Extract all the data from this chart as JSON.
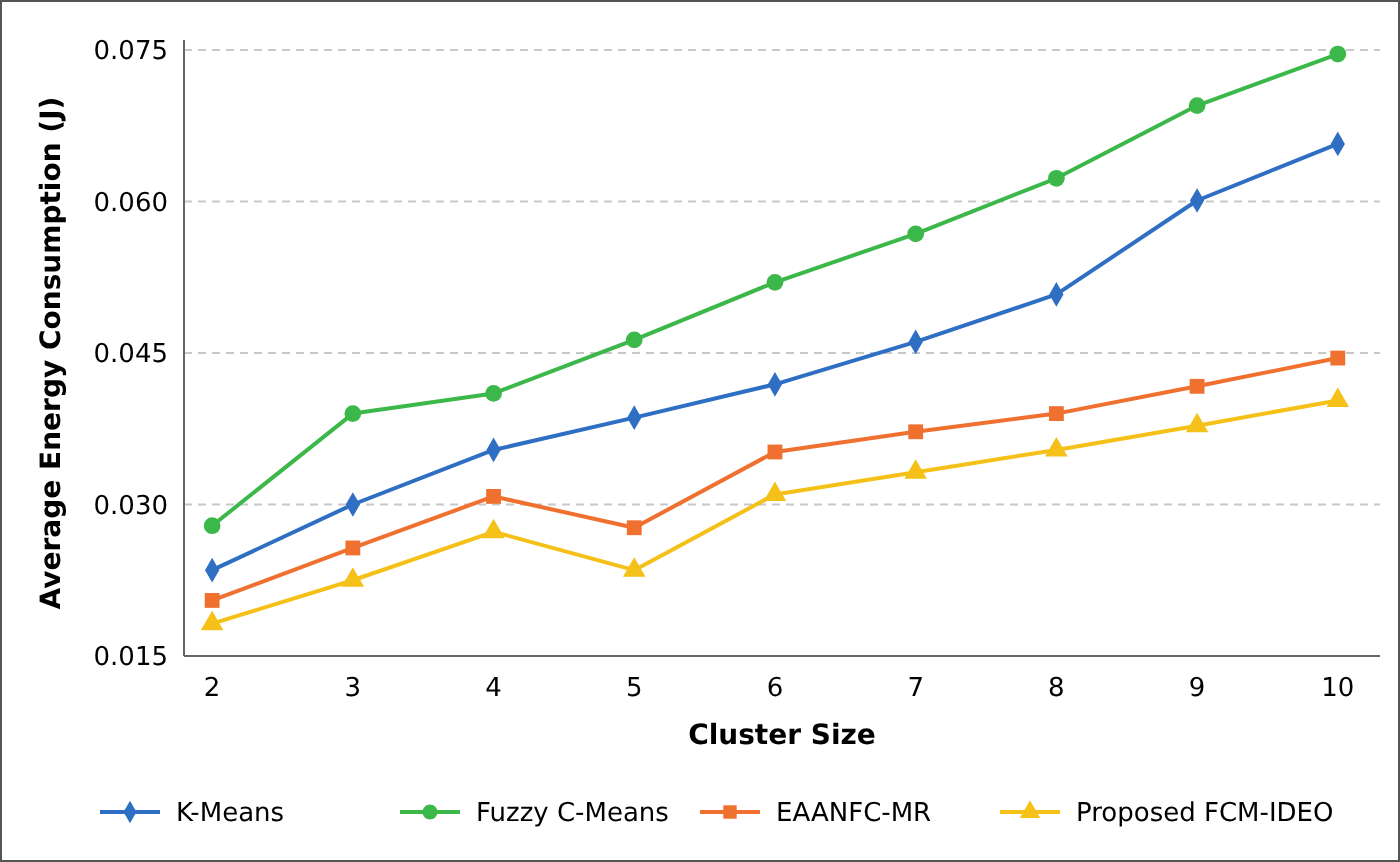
{
  "chart_data": {
    "type": "line",
    "xlabel": "Cluster Size",
    "ylabel": "Average Energy Consumption (J)",
    "x": [
      2,
      3,
      4,
      5,
      6,
      7,
      8,
      9,
      10
    ],
    "xlim": [
      1.8,
      10.3
    ],
    "xticks": [
      2,
      3,
      4,
      5,
      6,
      7,
      8,
      9,
      10
    ],
    "ylim": [
      0.015,
      0.075
    ],
    "yticks": [
      {
        "value": 0.015,
        "label": "0.015"
      },
      {
        "value": 0.03,
        "label": "0.030"
      },
      {
        "value": 0.045,
        "label": "0.045"
      },
      {
        "value": 0.06,
        "label": "0.060"
      },
      {
        "value": 0.075,
        "label": "0.075"
      }
    ],
    "grid": "y",
    "legend": "bottom",
    "series": [
      {
        "name": "K-Means",
        "color": "#2e6fc4",
        "marker": "diamond",
        "values": [
          0.0235,
          0.03,
          0.0354,
          0.0386,
          0.0419,
          0.0461,
          0.0508,
          0.0601,
          0.0657
        ]
      },
      {
        "name": "Fuzzy C-Means",
        "color": "#3cb84a",
        "marker": "circle",
        "values": [
          0.0279,
          0.039,
          0.041,
          0.0463,
          0.052,
          0.0568,
          0.0623,
          0.0695,
          0.0746
        ]
      },
      {
        "name": "EAANFC-MR",
        "color": "#f07030",
        "marker": "square",
        "values": [
          0.0205,
          0.0257,
          0.0308,
          0.0277,
          0.0352,
          0.0372,
          0.039,
          0.0417,
          0.0445
        ]
      },
      {
        "name": "Proposed FCM-IDEO",
        "color": "#f5c018",
        "marker": "triangle",
        "values": [
          0.0182,
          0.0225,
          0.0273,
          0.0235,
          0.031,
          0.0332,
          0.0354,
          0.0378,
          0.0403
        ]
      }
    ]
  }
}
